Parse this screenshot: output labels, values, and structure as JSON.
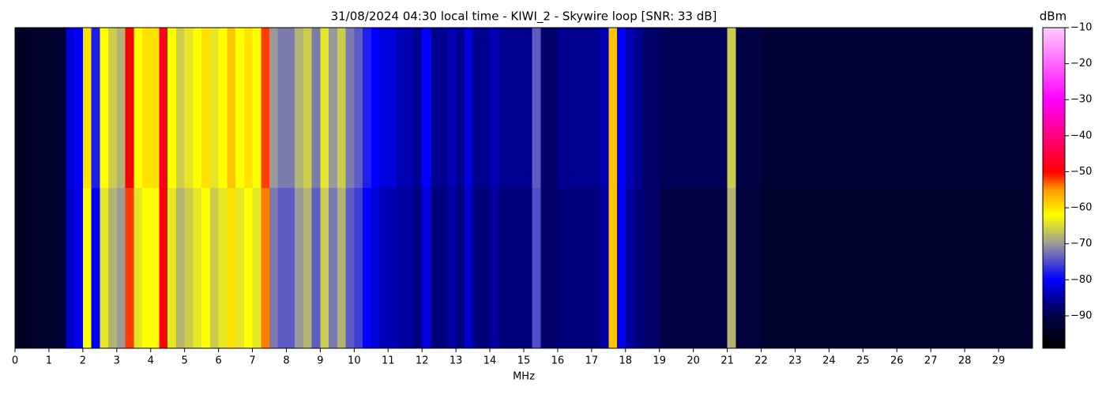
{
  "chart_data": {
    "type": "heatmap",
    "title": "31/08/2024 04:30 local time - KIWI_2 - Skywire loop [SNR: 33 dB]",
    "x_label": "MHz",
    "colorbar_label": "dBm",
    "xlim": [
      0,
      30
    ],
    "xticks": [
      0,
      1,
      2,
      3,
      4,
      5,
      6,
      7,
      8,
      9,
      10,
      11,
      12,
      13,
      14,
      15,
      16,
      17,
      18,
      19,
      20,
      21,
      22,
      23,
      24,
      25,
      26,
      27,
      28,
      29
    ],
    "zlim": [
      -99,
      -10
    ],
    "zticks": [
      {
        "value": -10,
        "label": "−10"
      },
      {
        "value": -20,
        "label": "−20"
      },
      {
        "value": -30,
        "label": "−30"
      },
      {
        "value": -40,
        "label": "−40"
      },
      {
        "value": -50,
        "label": "−50"
      },
      {
        "value": -60,
        "label": "−60"
      },
      {
        "value": -70,
        "label": "−70"
      },
      {
        "value": -80,
        "label": "−80"
      },
      {
        "value": -90,
        "label": "−90"
      }
    ],
    "colorscale": [
      [
        -99,
        "#000000"
      ],
      [
        -90,
        "#000044"
      ],
      [
        -80,
        "#0000ff"
      ],
      [
        -70,
        "#9a9a9a"
      ],
      [
        -62,
        "#ffff00"
      ],
      [
        -55,
        "#ff9900"
      ],
      [
        -50,
        "#ff0000"
      ],
      [
        -30,
        "#ff00ff"
      ],
      [
        -10,
        "#ffccff"
      ]
    ],
    "z": [
      [
        -94,
        -94,
        -93,
        -93,
        -93,
        -92,
        -82,
        -80,
        -60,
        -78,
        -62,
        -66,
        -68,
        -50,
        -62,
        -60,
        -60,
        -48,
        -62,
        -66,
        -64,
        -62,
        -60,
        -64,
        -62,
        -58,
        -62,
        -60,
        -62,
        -52,
        -70,
        -72,
        -72,
        -68,
        -66,
        -72,
        -64,
        -70,
        -66,
        -72,
        -74,
        -78,
        -80,
        -82,
        -82,
        -84,
        -84,
        -86,
        -80,
        -86,
        -86,
        -84,
        -86,
        -82,
        -86,
        -86,
        -84,
        -86,
        -86,
        -86,
        -86,
        -74,
        -88,
        -88,
        -86,
        -86,
        -86,
        -86,
        -86,
        -84,
        -58,
        -80,
        -84,
        -86,
        -88,
        -88,
        -89,
        -89,
        -89,
        -89,
        -89,
        -89,
        -89,
        -89,
        -66,
        -90,
        -90,
        -90,
        -92,
        -92,
        -92,
        -92,
        -92,
        -92,
        -92,
        -92,
        -92,
        -92,
        -92,
        -92,
        -92,
        -92,
        -92,
        -92,
        -92,
        -92,
        -92,
        -92,
        -92,
        -92,
        -92,
        -92,
        -92,
        -92,
        -92,
        -92,
        -92,
        -92,
        -92,
        -92
      ],
      [
        -94,
        -94,
        -93,
        -93,
        -93,
        -92,
        -83,
        -81,
        -62,
        -80,
        -64,
        -68,
        -70,
        -52,
        -64,
        -62,
        -62,
        -50,
        -64,
        -68,
        -66,
        -64,
        -62,
        -66,
        -64,
        -60,
        -64,
        -62,
        -64,
        -54,
        -72,
        -74,
        -74,
        -70,
        -68,
        -74,
        -66,
        -72,
        -68,
        -74,
        -76,
        -80,
        -82,
        -84,
        -84,
        -85,
        -85,
        -87,
        -82,
        -87,
        -87,
        -85,
        -87,
        -83,
        -87,
        -87,
        -85,
        -87,
        -87,
        -87,
        -87,
        -75,
        -88,
        -88,
        -87,
        -87,
        -87,
        -87,
        -87,
        -85,
        -58,
        -81,
        -85,
        -87,
        -88,
        -88,
        -90,
        -90,
        -90,
        -90,
        -90,
        -90,
        -90,
        -90,
        -68,
        -91,
        -91,
        -91,
        -93,
        -93,
        -93,
        -93,
        -93,
        -93,
        -93,
        -93,
        -93,
        -93,
        -93,
        -93,
        -93,
        -93,
        -93,
        -93,
        -93,
        -93,
        -93,
        -93,
        -93,
        -93,
        -93,
        -93,
        -93,
        -93,
        -93,
        -93,
        -93,
        -93,
        -93,
        -93
      ]
    ]
  }
}
